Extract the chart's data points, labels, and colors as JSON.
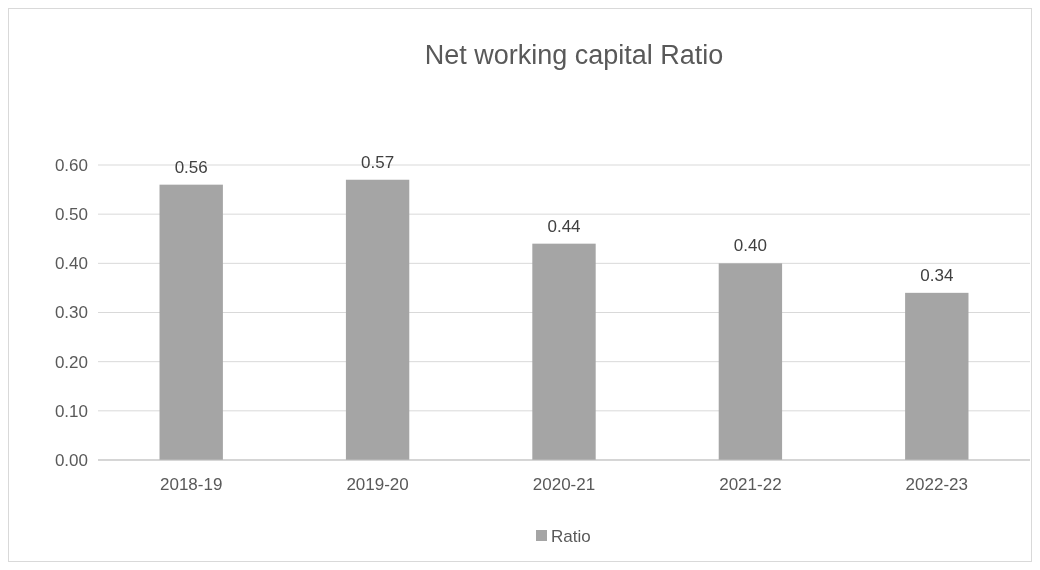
{
  "chart_data": {
    "type": "bar",
    "title": "Net working capital Ratio",
    "categories": [
      "2018-19",
      "2019-20",
      "2020-21",
      "2021-22",
      "2022-23"
    ],
    "series": [
      {
        "name": "Ratio",
        "color": "#a5a5a5",
        "values": [
          0.56,
          0.57,
          0.44,
          0.4,
          0.34
        ],
        "value_labels": [
          "0.56",
          "0.57",
          "0.44",
          "0.40",
          "0.34"
        ]
      }
    ],
    "ylim": [
      0,
      0.6
    ],
    "yticks": [
      {
        "value": 0,
        "label": "0.00"
      },
      {
        "value": 0.1,
        "label": "0.10"
      },
      {
        "value": 0.2,
        "label": "0.20"
      },
      {
        "value": 0.3,
        "label": "0.30"
      },
      {
        "value": 0.4,
        "label": "0.40"
      },
      {
        "value": 0.5,
        "label": "0.50"
      },
      {
        "value": 0.6,
        "label": "0.60"
      }
    ],
    "grid": "y",
    "legend": "bottom"
  }
}
